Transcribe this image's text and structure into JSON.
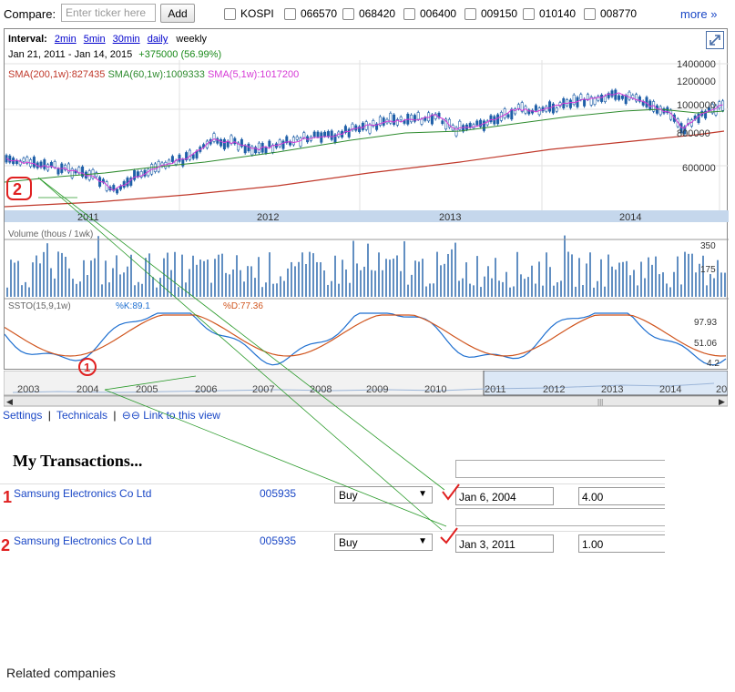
{
  "compare": {
    "label": "Compare:",
    "placeholder": "Enter ticker here",
    "add_label": "Add",
    "tickers": [
      "KOSPI",
      "066570",
      "068420",
      "006400",
      "009150",
      "010140",
      "008770"
    ],
    "more_label": "more »"
  },
  "chart": {
    "interval_label": "Interval:",
    "intervals": [
      "2min",
      "5min",
      "30min",
      "daily"
    ],
    "current_interval": "weekly",
    "range_from": "Jan 21, 2011",
    "range_sep": "-",
    "range_to": "Jan 14, 2015",
    "change": "+375000 (56.99%)",
    "sma200": "SMA(200,1w):827435",
    "sma60": "SMA(60,1w):1009333",
    "sma5": "SMA(5,1w):1017200",
    "price_ticks": [
      "1400000",
      "1200000",
      "1000000",
      "800000",
      "600000"
    ],
    "year_labels": [
      "2011",
      "2012",
      "2013",
      "2014"
    ],
    "volume_label": "Volume (thous / 1wk)",
    "volume_ticks": [
      "350",
      "175"
    ],
    "ssto_label": "SSTO(15,9,1w)",
    "ssto_k": "%K:89.1",
    "ssto_d": "%D:77.36",
    "ssto_ticks": [
      "97.93",
      "51.06",
      "4.2"
    ],
    "colors": {
      "sma200": "#c0392b",
      "sma60": "#2e8b2e",
      "sma5": "#d63ad6",
      "candles": "#1f5fa8",
      "k": "#1e6fd0",
      "d": "#d0551e"
    }
  },
  "navigator": {
    "years": [
      "2003",
      "2004",
      "2005",
      "2006",
      "2007",
      "2008",
      "2009",
      "2010",
      "2011",
      "2012",
      "2013",
      "2014",
      "20"
    ]
  },
  "links": {
    "settings": "Settings",
    "sep": "|",
    "technicals": "Technicals",
    "link_view": "Link to this view"
  },
  "transactions": {
    "title": "My Transactions...",
    "rows": [
      {
        "name": "Samsung Electronics Co Ltd",
        "symbol": "005935",
        "type": "Buy",
        "date": "Jan 6, 2004",
        "shares": "4.00"
      },
      {
        "name": "Samsung Electronics Co Ltd",
        "symbol": "005935",
        "type": "Buy",
        "date": "Jan 3, 2011",
        "shares": "1.00"
      }
    ]
  },
  "related": "Related companies",
  "annotations": {
    "marker_top": "2",
    "marker_bottom": "1",
    "row_mark_1": "1",
    "row_mark_2": "2"
  }
}
